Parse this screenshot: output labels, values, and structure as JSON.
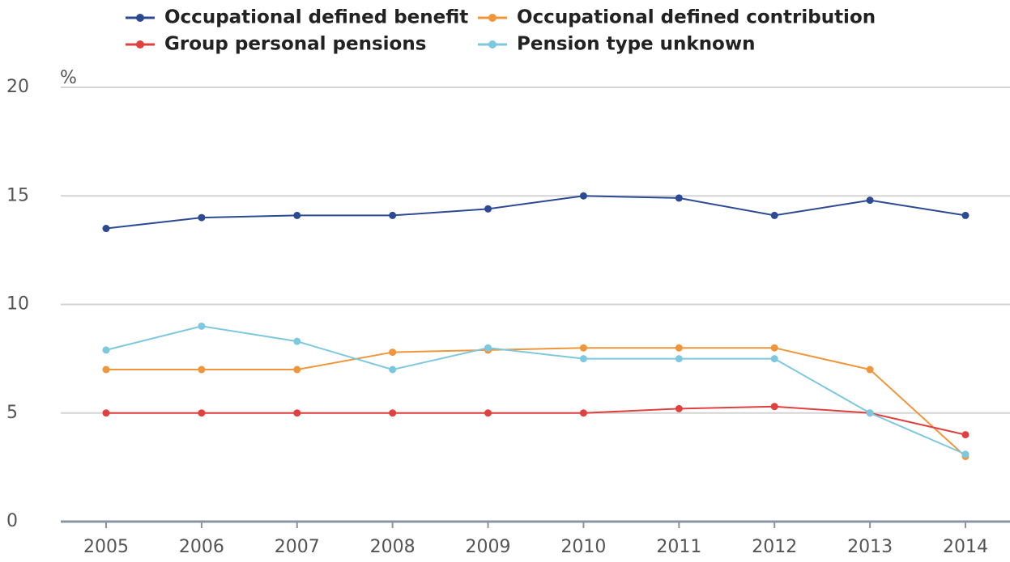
{
  "chart_data": {
    "type": "line",
    "y_label": "%",
    "categories": [
      "2005",
      "2006",
      "2007",
      "2008",
      "2009",
      "2010",
      "2011",
      "2012",
      "2013",
      "2014"
    ],
    "series": [
      {
        "name": "Occupational defined benefit",
        "color": "#2b4a93",
        "values": [
          13.5,
          14.0,
          14.1,
          14.1,
          14.4,
          15.0,
          14.9,
          14.1,
          14.8,
          14.1
        ]
      },
      {
        "name": "Occupational defined contribution",
        "color": "#f0953a",
        "values": [
          7.0,
          7.0,
          7.0,
          7.8,
          7.9,
          8.0,
          8.0,
          8.0,
          7.0,
          3.0
        ]
      },
      {
        "name": "Group personal pensions",
        "color": "#e0403f",
        "values": [
          5.0,
          5.0,
          5.0,
          5.0,
          5.0,
          5.0,
          5.2,
          5.3,
          5.0,
          4.0
        ]
      },
      {
        "name": "Pension type unknown",
        "color": "#7ec8df",
        "values": [
          7.9,
          9.0,
          8.3,
          7.0,
          8.0,
          7.5,
          7.5,
          7.5,
          5.0,
          3.1
        ]
      }
    ],
    "ylim": [
      0,
      20
    ],
    "yticks": [
      0,
      5,
      10,
      15,
      20
    ],
    "grid": true
  }
}
